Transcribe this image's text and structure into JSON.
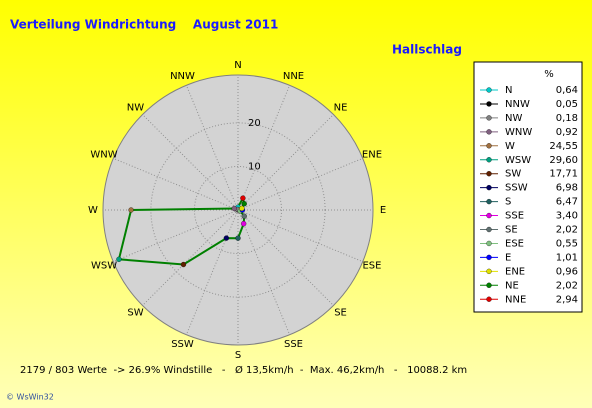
{
  "chart_data": {
    "type": "radar",
    "title": "Verteilung Windrichtung    August 2011",
    "subtitle": "Hallschlag",
    "categories": [
      "N",
      "NNW",
      "NW",
      "WNW",
      "W",
      "WSW",
      "SW",
      "SSW",
      "S",
      "SSE",
      "SE",
      "ESE",
      "E",
      "ENE",
      "NE",
      "NNE"
    ],
    "values": [
      0.64,
      0.05,
      0.18,
      0.92,
      24.55,
      29.6,
      17.71,
      6.98,
      6.47,
      3.4,
      2.02,
      0.55,
      1.01,
      0.96,
      2.02,
      2.94
    ],
    "value_labels": [
      "0,64",
      "0,05",
      "0,18",
      "0,92",
      "24,55",
      "29,60",
      "17,71",
      "6,98",
      "6,47",
      "3,40",
      "2,02",
      "0,55",
      "1,01",
      "0,96",
      "2,02",
      "2,94"
    ],
    "colors": [
      "#00c8c8",
      "#000000",
      "#808080",
      "#806080",
      "#a07040",
      "#00a080",
      "#602000",
      "#000060",
      "#206060",
      "#e000e0",
      "#607070",
      "#80c080",
      "#0000ff",
      "#e0e000",
      "#008000",
      "#e00000"
    ],
    "line_color": "#008000",
    "unit": "%",
    "ylim": [
      0,
      31
    ],
    "yticks": [
      10,
      20
    ],
    "footer": "2179 / 803 Werte  -> 26.9% Windstille   -   Ø 13,5km/h  -  Max. 46,2km/h   -   10088.2 km",
    "credit": "© WsWin32"
  }
}
